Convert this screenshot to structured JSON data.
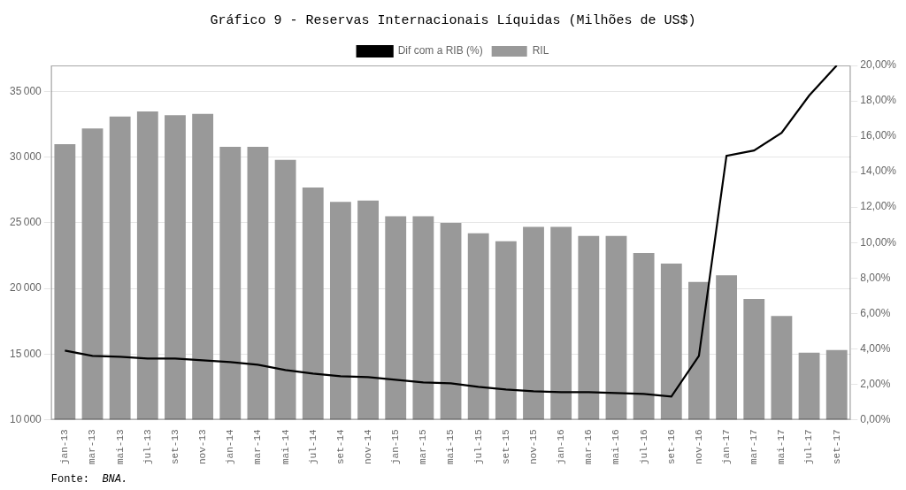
{
  "chart_data": {
    "type": "bar",
    "title": "Gráfico 9 - Reservas Internacionais Líquidas (Milhões de US$)",
    "annotations": [
      "Fonte:",
      "  BNA."
    ],
    "categories": [
      "jan-13",
      "mar-13",
      "mai-13",
      "jul-13",
      "set-13",
      "nov-13",
      "jan-14",
      "mar-14",
      "mai-14",
      "jul-14",
      "set-14",
      "nov-14",
      "jan-15",
      "mar-15",
      "mai-15",
      "jul-15",
      "set-15",
      "nov-15",
      "jan-16",
      "mar-16",
      "mai-16",
      "jul-16",
      "set-16",
      "nov-16",
      "jan-17",
      "mar-17",
      "mai-17",
      "jul-17",
      "set-17"
    ],
    "series": [
      {
        "name": "RIL",
        "type": "bar",
        "color": "#999999",
        "values": [
          31000,
          32200,
          33100,
          33500,
          33200,
          33300,
          30800,
          30800,
          29800,
          27700,
          26600,
          26700,
          25500,
          25500,
          25000,
          24200,
          23600,
          24700,
          24700,
          24000,
          24000,
          22700,
          21900,
          20500,
          21000,
          19200,
          17900,
          15100,
          15300
        ]
      },
      {
        "name": "Dif com a RIB (%)",
        "type": "line",
        "color": "#000000",
        "axis": "y2",
        "values": [
          0.039,
          0.036,
          0.0355,
          0.0345,
          0.0345,
          0.0335,
          0.0325,
          0.031,
          0.028,
          0.026,
          0.0245,
          0.024,
          0.0225,
          0.021,
          0.0205,
          0.0185,
          0.017,
          0.016,
          0.0155,
          0.0155,
          0.015,
          0.0145,
          0.013,
          0.036,
          0.149,
          0.152,
          0.162,
          0.183,
          0.2
        ]
      }
    ],
    "ylim": [
      10000,
      37000
    ],
    "yticks": [
      {
        "value": 10000,
        "label": "10 000"
      },
      {
        "value": 15000,
        "label": "15 000"
      },
      {
        "value": 20000,
        "label": "20 000"
      },
      {
        "value": 25000,
        "label": "25 000"
      },
      {
        "value": 30000,
        "label": "30 000"
      },
      {
        "value": 35000,
        "label": "35 000"
      }
    ],
    "y2lim": [
      0.0,
      0.2
    ],
    "y2ticks": [
      {
        "value": 0,
        "label": "0,00%"
      },
      {
        "value": 0.02,
        "label": "2,00%"
      },
      {
        "value": 0.04,
        "label": "4,00%"
      },
      {
        "value": 0.06,
        "label": "6,00%"
      },
      {
        "value": 0.08,
        "label": "8,00%"
      },
      {
        "value": 0.1,
        "label": "10,00%"
      },
      {
        "value": 0.12,
        "label": "12,00%"
      },
      {
        "value": 0.14,
        "label": "14,00%"
      },
      {
        "value": 0.16,
        "label": "16,00%"
      },
      {
        "value": 0.18,
        "label": "18,00%"
      },
      {
        "value": 0.2,
        "label": "20,00%"
      }
    ],
    "grid": true,
    "legend": "top"
  }
}
